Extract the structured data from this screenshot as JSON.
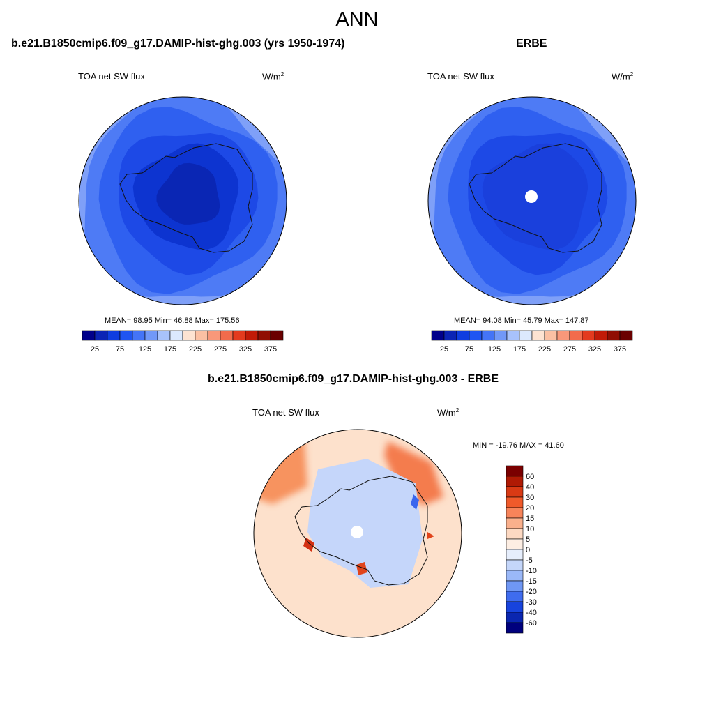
{
  "figure": {
    "title": "ANN",
    "panels": [
      {
        "id": "model",
        "header": "b.e21.B1850cmip6.f09_g17.DAMIP-hist-ghg.003 (yrs 1950-1974)",
        "variable": "TOA net SW flux",
        "units_base": "W/m",
        "units_exp": "2",
        "stats": "MEAN=  98.95  Min=  46.88  Max= 175.56"
      },
      {
        "id": "obs",
        "header": "ERBE",
        "variable": "TOA net SW flux",
        "units_base": "W/m",
        "units_exp": "2",
        "stats": "MEAN=  94.08  Min=  45.79  Max= 147.87"
      },
      {
        "id": "diff",
        "header": "b.e21.B1850cmip6.f09_g17.DAMIP-hist-ghg.003 - ERBE",
        "variable": "TOA net SW flux",
        "units_base": "W/m",
        "units_exp": "2",
        "stats": "MIN = -19.76 MAX =  41.60"
      }
    ]
  },
  "chart_data": [
    {
      "type": "heatmap",
      "projection": "south-polar-stereographic",
      "title": "b.e21.B1850cmip6.f09_g17.DAMIP-hist-ghg.003 (yrs 1950-1974)",
      "variable": "TOA net SW flux",
      "units": "W/m2",
      "mean": 98.95,
      "min": 46.88,
      "max": 175.56,
      "colorbar_levels": [
        25,
        50,
        75,
        100,
        125,
        150,
        175,
        200,
        225,
        250,
        275,
        300,
        325,
        350,
        375
      ],
      "colorbar_tick_labels": [
        "25",
        "75",
        "125",
        "175",
        "225",
        "275",
        "325",
        "375"
      ],
      "colorbar_colors": [
        "#00008a",
        "#0b24b5",
        "#0f3de0",
        "#1f55f2",
        "#4474f7",
        "#7198f8",
        "#a8c2fb",
        "#dce9fd",
        "#fde3d2",
        "#fbc0a3",
        "#f8987a",
        "#f26b4c",
        "#e33a1e",
        "#c11a07",
        "#900e03",
        "#6a0000"
      ],
      "map_bands": [
        {
          "value": 137,
          "color": "#7fa0f8"
        },
        {
          "value": 120,
          "color": "#4e7bf5"
        },
        {
          "value": 100,
          "color": "#2f60f0"
        },
        {
          "value": 85,
          "color": "#1d49e6"
        },
        {
          "value": 65,
          "color": "#0d34d0"
        },
        {
          "value": 50,
          "color": "#0a26b4"
        }
      ]
    },
    {
      "type": "heatmap",
      "projection": "south-polar-stereographic",
      "title": "ERBE",
      "variable": "TOA net SW flux",
      "units": "W/m2",
      "mean": 94.08,
      "min": 45.79,
      "max": 147.87,
      "colorbar_levels": [
        25,
        50,
        75,
        100,
        125,
        150,
        175,
        200,
        225,
        250,
        275,
        300,
        325,
        350,
        375
      ],
      "colorbar_tick_labels": [
        "25",
        "75",
        "125",
        "175",
        "225",
        "275",
        "325",
        "375"
      ],
      "colorbar_colors": [
        "#00008a",
        "#0b24b5",
        "#0f3de0",
        "#1f55f2",
        "#4474f7",
        "#7198f8",
        "#a8c2fb",
        "#dce9fd",
        "#fde3d2",
        "#fbc0a3",
        "#f8987a",
        "#f26b4c",
        "#e33a1e",
        "#c11a07",
        "#900e03",
        "#6a0000"
      ],
      "map_bands": [
        {
          "value": 137,
          "color": "#7fa0f8"
        },
        {
          "value": 120,
          "color": "#4e7bf5"
        },
        {
          "value": 100,
          "color": "#2f60f0"
        },
        {
          "value": 85,
          "color": "#1d49e6"
        },
        {
          "value": 65,
          "color": "#1a40dc"
        }
      ],
      "missing_data_at_pole": true
    },
    {
      "type": "heatmap",
      "projection": "south-polar-stereographic",
      "title": "b.e21.B1850cmip6.f09_g17.DAMIP-hist-ghg.003 - ERBE",
      "variable": "TOA net SW flux",
      "units": "W/m2",
      "min": -19.76,
      "max": 41.6,
      "colorbar_labels_top_to_bottom": [
        "60",
        "40",
        "30",
        "20",
        "15",
        "10",
        "5",
        "0",
        "-5",
        "-10",
        "-15",
        "-20",
        "-30",
        "-40",
        "-60"
      ],
      "colorbar_colors_top_to_bottom": [
        "#7a0000",
        "#b01a04",
        "#d93a14",
        "#f05a2a",
        "#f7845a",
        "#fab08c",
        "#fdd9c2",
        "#fdeee3",
        "#e6eefc",
        "#c4d6fa",
        "#9ab8f8",
        "#6f97f4",
        "#3f6cef",
        "#1743dd",
        "#0a26b0",
        "#00007d"
      ],
      "map_base_color": "#fde1cc",
      "features": [
        {
          "region": "southern ocean (west/atlantic)",
          "anomaly": 15,
          "color": "#f7935f"
        },
        {
          "region": "southern ocean (east/pacific)",
          "anomaly": 20,
          "color": "#f47b4d"
        },
        {
          "region": "antarctic interior",
          "anomaly": -7,
          "color": "#c5d6fa"
        },
        {
          "region": "antarctic peninsula",
          "anomaly": 40,
          "color": "#d33012"
        },
        {
          "region": "ross ice shelf edge",
          "anomaly": 35,
          "color": "#e0441c"
        },
        {
          "region": "east antarctic coast",
          "anomaly": -20,
          "color": "#3a66ee"
        }
      ],
      "missing_data_at_pole": true
    }
  ]
}
